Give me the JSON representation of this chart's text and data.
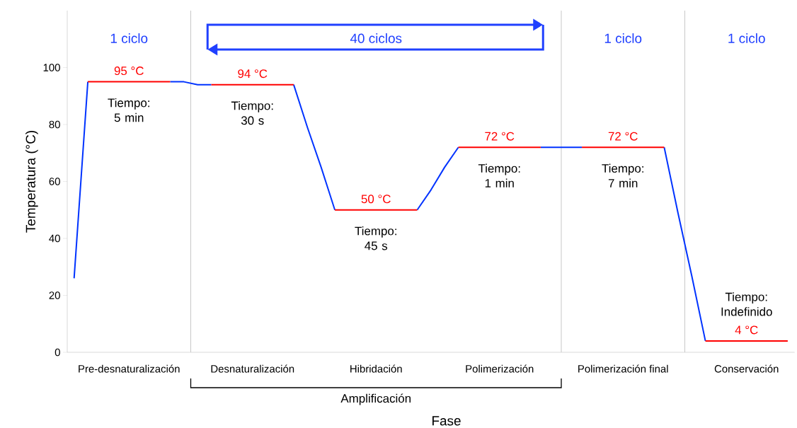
{
  "chart_data": {
    "type": "line",
    "xlabel": "Fase",
    "ylabel": "Temperatura (°C)",
    "categories": [
      null,
      null,
      null,
      null,
      "Pre-desnaturalización",
      null,
      null,
      null,
      null,
      null,
      null,
      null,
      null,
      "Desnaturalización",
      null,
      null,
      null,
      null,
      null,
      null,
      null,
      null,
      "Hibridación",
      null,
      null,
      null,
      null,
      null,
      null,
      null,
      null,
      "Polimerización",
      null,
      null,
      null,
      null,
      null,
      null,
      null,
      null,
      "Polimerización final",
      null,
      null,
      null,
      null,
      null,
      null,
      null,
      null,
      "Conservación",
      null,
      null,
      null
    ],
    "ylim": [
      0,
      120
    ],
    "yticks": [
      0,
      20,
      40,
      60,
      80,
      100
    ],
    "grid": false,
    "series": [
      {
        "color": "#0033ff",
        "values": [
          26,
          95,
          null,
          null,
          null,
          null,
          null,
          95,
          95,
          94,
          94,
          null,
          null,
          null,
          null,
          null,
          94,
          79,
          65,
          50,
          null,
          null,
          null,
          null,
          null,
          50,
          57,
          65,
          72,
          null,
          null,
          null,
          null,
          null,
          72,
          72,
          72,
          72,
          null,
          null,
          null,
          null,
          null,
          72,
          49,
          27,
          4,
          null,
          null,
          null,
          null,
          null,
          null
        ]
      },
      {
        "color": "#ff0000",
        "values": [
          null,
          95,
          95,
          95,
          95,
          95,
          95,
          95,
          null,
          null,
          94,
          94,
          94,
          94,
          94,
          94,
          94,
          null,
          null,
          50,
          50,
          50,
          50,
          50,
          50,
          50,
          null,
          null,
          72,
          72,
          72,
          72,
          72,
          72,
          72,
          null,
          null,
          72,
          72,
          72,
          72,
          72,
          72,
          72,
          null,
          null,
          4,
          4,
          4,
          4,
          4,
          4,
          4
        ],
        "value_labels": [
          null,
          null,
          null,
          null,
          "95 °C",
          null,
          null,
          null,
          null,
          null,
          null,
          null,
          null,
          "94 °C",
          null,
          null,
          null,
          null,
          null,
          null,
          null,
          null,
          "50 °C",
          null,
          null,
          null,
          null,
          null,
          null,
          null,
          null,
          "72 °C",
          null,
          null,
          null,
          null,
          null,
          null,
          null,
          null,
          "72 °C",
          null,
          null,
          null,
          null,
          null,
          null,
          null,
          null,
          "4 °C",
          null,
          null,
          null
        ]
      }
    ],
    "annotations": [
      "1 ciclo",
      "40 ciclos",
      "1 ciclo",
      "1 ciclo",
      "Tiempo: 5 min",
      "Tiempo: 30 s",
      "Tiempo: 45 s",
      "Tiempo: 1 min",
      "Tiempo: 7 min",
      "Tiempo: Indefinido",
      "Amplificación"
    ]
  }
}
